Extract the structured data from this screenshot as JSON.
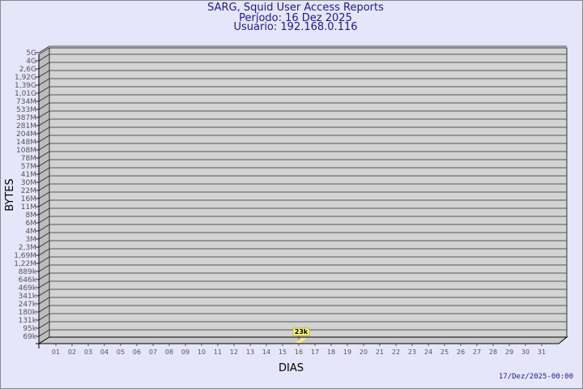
{
  "title_lines": [
    "SARG, Squid User Access Reports",
    "Período: 16 Dez 2025",
    "Usuário: 192.168.0.116"
  ],
  "footer": "17/Dez/2025-00:00",
  "colors": {
    "background": "#e6e6fa",
    "plot": "#d3d3d3",
    "text": "#1a1a8c",
    "bar": "#ffe680",
    "label_box": "#ffff99"
  },
  "chart_data": {
    "type": "bar",
    "xlabel": "DIAS",
    "ylabel": "BYTES",
    "y_scale": "log",
    "y_tick_labels": [
      "5G",
      "4G",
      "2,6G",
      "1,92G",
      "1,39G",
      "1,01G",
      "734M",
      "533M",
      "387M",
      "281M",
      "204M",
      "148M",
      "108M",
      "78M",
      "57M",
      "41M",
      "30M",
      "22M",
      "16M",
      "11M",
      "8M",
      "6M",
      "4M",
      "3M",
      "2,3M",
      "1,69M",
      "1,22M",
      "889k",
      "646k",
      "469k",
      "341k",
      "247k",
      "180k",
      "131k",
      "95k",
      "69k"
    ],
    "categories": [
      "01",
      "02",
      "03",
      "04",
      "05",
      "06",
      "07",
      "08",
      "09",
      "10",
      "11",
      "12",
      "13",
      "14",
      "15",
      "16",
      "17",
      "18",
      "19",
      "20",
      "21",
      "22",
      "23",
      "24",
      "25",
      "26",
      "27",
      "28",
      "29",
      "30",
      "31"
    ],
    "values": [
      0,
      0,
      0,
      0,
      0,
      0,
      0,
      0,
      0,
      0,
      0,
      0,
      0,
      0,
      0,
      23000,
      0,
      0,
      0,
      0,
      0,
      0,
      0,
      0,
      0,
      0,
      0,
      0,
      0,
      0,
      0
    ],
    "data_labels": [
      {
        "category": "16",
        "label": "23k"
      }
    ],
    "grid": true
  }
}
